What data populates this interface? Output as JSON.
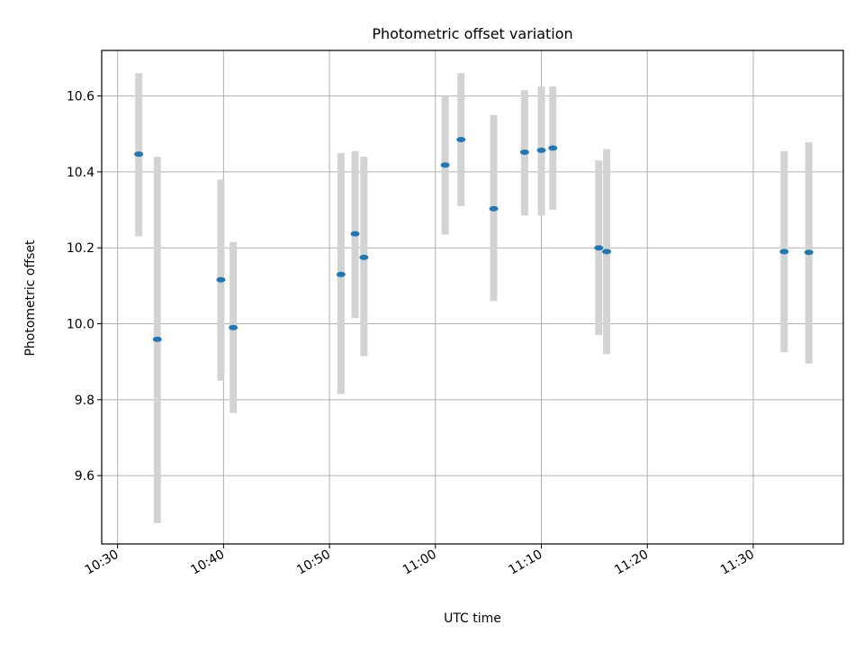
{
  "chart_data": {
    "type": "scatter",
    "title": "Photometric offset variation",
    "xlabel": "UTC time",
    "ylabel": "Photometric offset",
    "grid": true,
    "legend": "none",
    "xlim": [
      "10:28:30",
      "11:38:30"
    ],
    "ylim": [
      9.42,
      10.72
    ],
    "xticks": [
      "10:30",
      "10:40",
      "10:50",
      "11:00",
      "11:10",
      "11:20",
      "11:30"
    ],
    "yticks": [
      9.6,
      9.8,
      10.0,
      10.2,
      10.4,
      10.6
    ],
    "series": [
      {
        "marker_color": "#1f77b4",
        "errorbar_color": "#d3d3d3",
        "points": [
          {
            "x": "10:32:00",
            "y": 10.447,
            "y_low": 10.23,
            "y_high": 10.66
          },
          {
            "x": "10:33:45",
            "y": 9.959,
            "y_low": 9.475,
            "y_high": 10.44
          },
          {
            "x": "10:39:45",
            "y": 10.116,
            "y_low": 9.85,
            "y_high": 10.38
          },
          {
            "x": "10:40:55",
            "y": 9.99,
            "y_low": 9.765,
            "y_high": 10.215
          },
          {
            "x": "10:51:05",
            "y": 10.13,
            "y_low": 9.815,
            "y_high": 10.45
          },
          {
            "x": "10:52:25",
            "y": 10.237,
            "y_low": 10.015,
            "y_high": 10.455
          },
          {
            "x": "10:53:15",
            "y": 10.175,
            "y_low": 9.915,
            "y_high": 10.44
          },
          {
            "x": "11:00:55",
            "y": 10.418,
            "y_low": 10.235,
            "y_high": 10.6
          },
          {
            "x": "11:02:25",
            "y": 10.485,
            "y_low": 10.31,
            "y_high": 10.66
          },
          {
            "x": "11:05:30",
            "y": 10.303,
            "y_low": 10.06,
            "y_high": 10.55
          },
          {
            "x": "11:08:25",
            "y": 10.452,
            "y_low": 10.285,
            "y_high": 10.615
          },
          {
            "x": "11:10:00",
            "y": 10.457,
            "y_low": 10.285,
            "y_high": 10.625
          },
          {
            "x": "11:11:05",
            "y": 10.463,
            "y_low": 10.3,
            "y_high": 10.625
          },
          {
            "x": "11:15:25",
            "y": 10.2,
            "y_low": 9.97,
            "y_high": 10.43
          },
          {
            "x": "11:16:10",
            "y": 10.19,
            "y_low": 9.92,
            "y_high": 10.46
          },
          {
            "x": "11:32:55",
            "y": 10.19,
            "y_low": 9.925,
            "y_high": 10.455
          },
          {
            "x": "11:35:15",
            "y": 10.188,
            "y_low": 9.895,
            "y_high": 10.478
          }
        ]
      }
    ]
  }
}
